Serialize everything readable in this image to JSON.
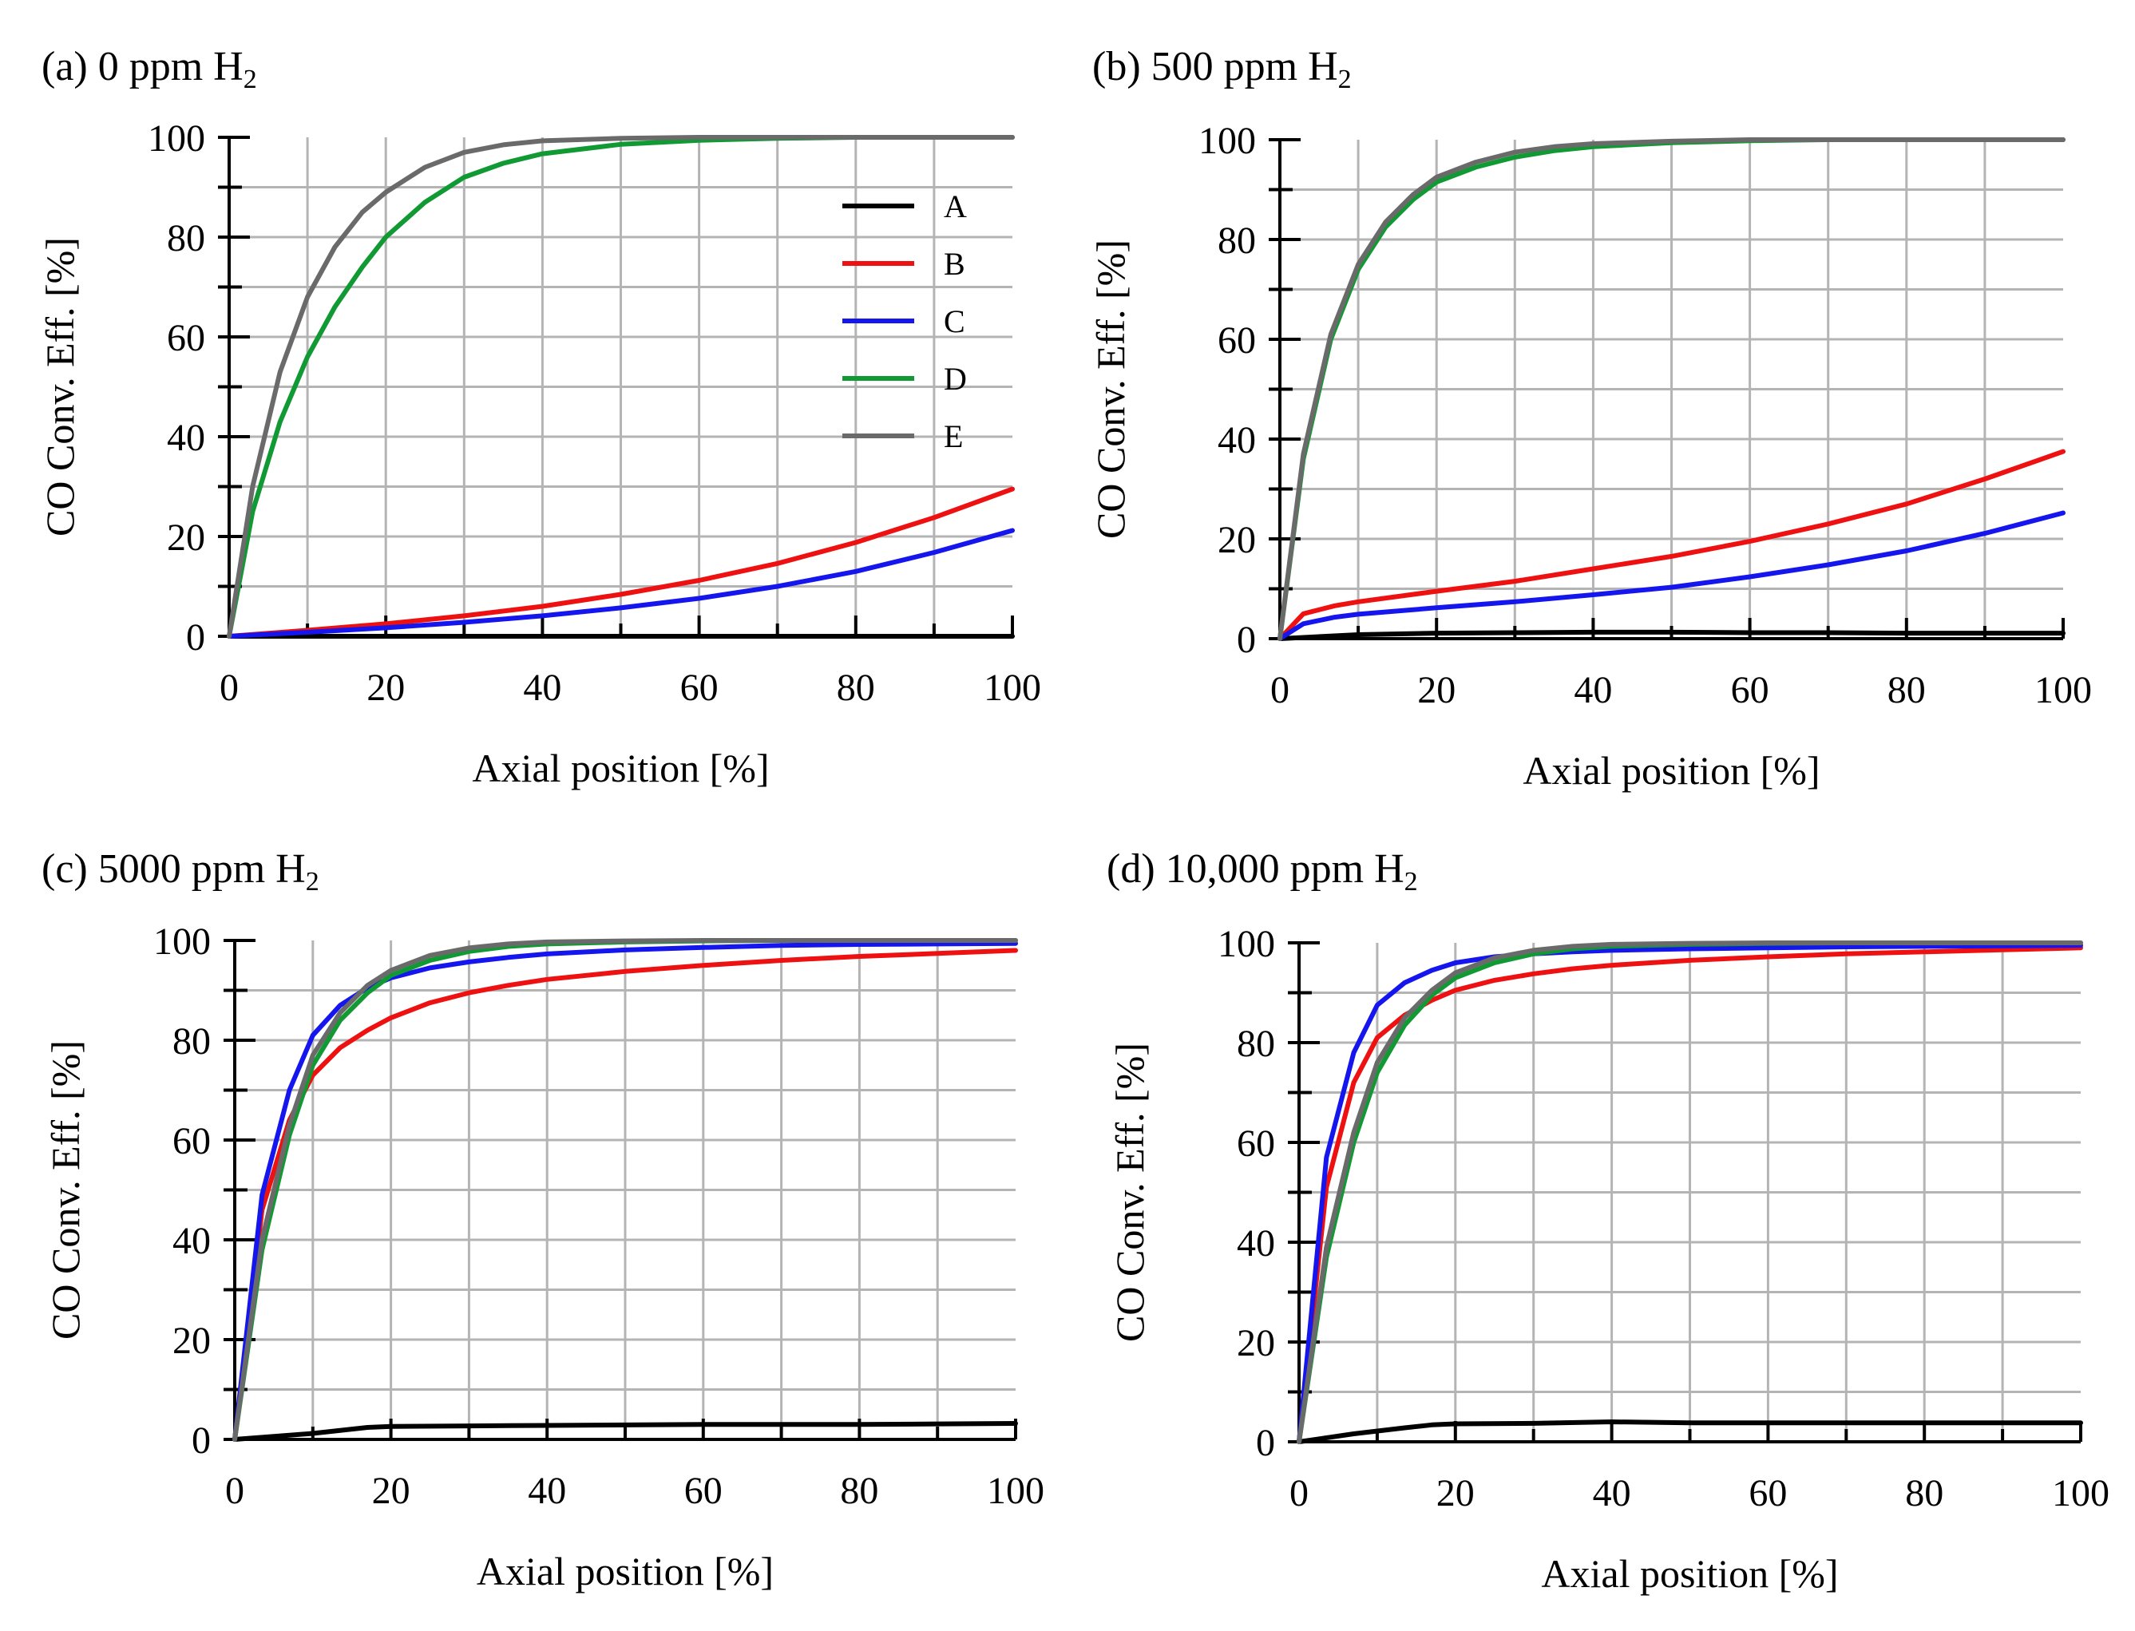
{
  "colors": {
    "A": "#000000",
    "B": "#ee1111",
    "C": "#1515ee",
    "D": "#119933",
    "E": "#6a6a6a",
    "grid": "#b4b4b4"
  },
  "chart_data": [
    {
      "type": "line",
      "title": "(a) 0 ppm H",
      "title_sub": "2",
      "xlabel": "Axial position [%]",
      "ylabel": "CO Conv. Eff.  [%]",
      "xlim": [
        0,
        100
      ],
      "ylim": [
        0,
        100
      ],
      "xticks": [
        "0",
        "20",
        "40",
        "60",
        "80",
        "100"
      ],
      "yticks": [
        "0",
        "20",
        "40",
        "60",
        "80",
        "100"
      ],
      "grid": true,
      "legend": "top-right",
      "series": [
        {
          "name": "A",
          "color": "#000000",
          "x": [
            0,
            20,
            40,
            60,
            80,
            100
          ],
          "y": [
            0,
            0,
            0,
            0,
            0,
            0
          ]
        },
        {
          "name": "B",
          "color": "#ee1111",
          "x": [
            0,
            10,
            20,
            30,
            40,
            50,
            60,
            70,
            80,
            90,
            100
          ],
          "y": [
            0,
            1.2,
            2.5,
            4.1,
            6,
            8.4,
            11.2,
            14.6,
            18.8,
            23.8,
            29.5
          ]
        },
        {
          "name": "C",
          "color": "#1515ee",
          "x": [
            0,
            10,
            20,
            30,
            40,
            50,
            60,
            70,
            80,
            90,
            100
          ],
          "y": [
            0,
            0.8,
            1.7,
            2.8,
            4.1,
            5.7,
            7.6,
            10,
            13,
            16.8,
            21.2
          ]
        },
        {
          "name": "D",
          "color": "#119933",
          "x": [
            0,
            3,
            6.5,
            10,
            13.5,
            17,
            20,
            25,
            30,
            35,
            40,
            50,
            60,
            70,
            80,
            90,
            100
          ],
          "y": [
            0,
            25,
            43,
            56,
            66,
            74,
            80,
            87,
            92,
            94.8,
            96.7,
            98.6,
            99.4,
            99.8,
            100,
            100,
            100
          ]
        },
        {
          "name": "E",
          "color": "#6a6a6a",
          "x": [
            0,
            3,
            6.5,
            10,
            13.5,
            17,
            20,
            25,
            30,
            35,
            40,
            50,
            60,
            70,
            80,
            90,
            100
          ],
          "y": [
            0,
            30,
            53,
            68,
            78,
            85,
            89,
            94,
            97,
            98.5,
            99.3,
            99.8,
            100,
            100,
            100,
            100,
            100
          ]
        }
      ]
    },
    {
      "type": "line",
      "title": "(b) 500 ppm H",
      "title_sub": "2",
      "xlabel": "Axial position [%]",
      "ylabel": "CO Conv. Eff.  [%]",
      "xlim": [
        0,
        100
      ],
      "ylim": [
        0,
        100
      ],
      "xticks": [
        "0",
        "20",
        "40",
        "60",
        "80",
        "100"
      ],
      "yticks": [
        "0",
        "20",
        "40",
        "60",
        "80",
        "100"
      ],
      "grid": true,
      "series": [
        {
          "name": "A",
          "color": "#000000",
          "x": [
            0,
            10,
            20,
            30,
            40,
            50,
            60,
            70,
            80,
            90,
            100
          ],
          "y": [
            0,
            0.8,
            1.1,
            1.2,
            1.3,
            1.3,
            1.2,
            1.2,
            1.1,
            1.1,
            1.1
          ]
        },
        {
          "name": "B",
          "color": "#ee1111",
          "x": [
            0,
            3,
            7,
            10,
            20,
            30,
            40,
            50,
            60,
            70,
            80,
            90,
            100
          ],
          "y": [
            0,
            5,
            6.6,
            7.4,
            9.5,
            11.5,
            14,
            16.5,
            19.5,
            23,
            27,
            32,
            37.5
          ]
        },
        {
          "name": "C",
          "color": "#1515ee",
          "x": [
            0,
            3,
            7,
            10,
            20,
            30,
            40,
            50,
            60,
            70,
            80,
            90,
            100
          ],
          "y": [
            0,
            3,
            4.3,
            4.9,
            6.2,
            7.4,
            8.8,
            10.3,
            12.4,
            14.8,
            17.6,
            21.1,
            25.2
          ]
        },
        {
          "name": "D",
          "color": "#119933",
          "x": [
            0,
            3,
            6.5,
            10,
            13.5,
            17,
            20,
            25,
            30,
            35,
            40,
            50,
            60,
            70,
            80,
            90,
            100
          ],
          "y": [
            0,
            36,
            60,
            74,
            82.5,
            88,
            91.5,
            94.5,
            96.5,
            97.8,
            98.6,
            99.4,
            99.8,
            100,
            100,
            100,
            100
          ]
        },
        {
          "name": "E",
          "color": "#6a6a6a",
          "x": [
            0,
            3,
            6.5,
            10,
            13.5,
            17,
            20,
            25,
            30,
            35,
            40,
            50,
            60,
            70,
            80,
            90,
            100
          ],
          "y": [
            0,
            37,
            61,
            75,
            83.5,
            89,
            92.5,
            95.5,
            97.5,
            98.6,
            99.2,
            99.7,
            100,
            100,
            100,
            100,
            100
          ]
        }
      ]
    },
    {
      "type": "line",
      "title": "(c) 5000 ppm H",
      "title_sub": "2",
      "xlabel": "Axial position [%]",
      "ylabel": "CO Conv. Eff.  [%]",
      "xlim": [
        0,
        100
      ],
      "ylim": [
        0,
        100
      ],
      "xticks": [
        "0",
        "20",
        "40",
        "60",
        "80",
        "100"
      ],
      "yticks": [
        "0",
        "20",
        "40",
        "60",
        "80",
        "100"
      ],
      "grid": true,
      "series": [
        {
          "name": "A",
          "color": "#000000",
          "x": [
            0,
            10,
            17,
            20,
            30,
            40,
            50,
            60,
            70,
            80,
            90,
            100
          ],
          "y": [
            0,
            1.2,
            2.4,
            2.6,
            2.7,
            2.8,
            2.9,
            3,
            3,
            3,
            3.1,
            3.2
          ]
        },
        {
          "name": "B",
          "color": "#ee1111",
          "x": [
            0,
            3.5,
            7,
            10,
            13.5,
            17,
            20,
            25,
            30,
            35,
            40,
            50,
            60,
            70,
            80,
            90,
            100
          ],
          "y": [
            0,
            46,
            64,
            73,
            78.5,
            82,
            84.5,
            87.5,
            89.5,
            91,
            92.2,
            93.8,
            95,
            96,
            96.8,
            97.4,
            98
          ]
        },
        {
          "name": "C",
          "color": "#1515ee",
          "x": [
            0,
            3.5,
            7,
            10,
            13.5,
            17,
            20,
            25,
            30,
            35,
            40,
            50,
            60,
            70,
            80,
            90,
            100
          ],
          "y": [
            0,
            49,
            70,
            81,
            87,
            90.5,
            92.5,
            94.5,
            95.7,
            96.6,
            97.3,
            98.1,
            98.6,
            99,
            99.2,
            99.3,
            99.4
          ]
        },
        {
          "name": "D",
          "color": "#119933",
          "x": [
            0,
            3.5,
            7,
            10,
            13.5,
            17,
            20,
            25,
            30,
            35,
            40,
            50,
            60,
            70,
            80,
            90,
            100
          ],
          "y": [
            0,
            38,
            61,
            75,
            84,
            89.5,
            93,
            96,
            97.8,
            98.8,
            99.3,
            99.7,
            99.9,
            100,
            100,
            100,
            100
          ]
        },
        {
          "name": "E",
          "color": "#6a6a6a",
          "x": [
            0,
            3.5,
            7,
            10,
            13.5,
            17,
            20,
            25,
            30,
            35,
            40,
            50,
            60,
            70,
            80,
            90,
            100
          ],
          "y": [
            0,
            40,
            63,
            77,
            85.5,
            91,
            94,
            97,
            98.5,
            99.3,
            99.7,
            99.9,
            100,
            100,
            100,
            100,
            100
          ]
        }
      ]
    },
    {
      "type": "line",
      "title": "(d) 10,000 ppm H",
      "title_sub": "2",
      "xlabel": "Axial position [%]",
      "ylabel": "CO Conv. Eff.  [%]",
      "xlim": [
        0,
        100
      ],
      "ylim": [
        0,
        100
      ],
      "xticks": [
        "0",
        "20",
        "40",
        "60",
        "80",
        "100"
      ],
      "yticks": [
        "0",
        "20",
        "40",
        "60",
        "80",
        "100"
      ],
      "grid": true,
      "series": [
        {
          "name": "A",
          "color": "#000000",
          "x": [
            0,
            7,
            13.5,
            17,
            20,
            30,
            40,
            50,
            60,
            70,
            80,
            90,
            100
          ],
          "y": [
            0,
            1.6,
            2.8,
            3.4,
            3.6,
            3.7,
            4,
            3.8,
            3.8,
            3.8,
            3.8,
            3.8,
            3.8
          ]
        },
        {
          "name": "B",
          "color": "#ee1111",
          "x": [
            0,
            3.5,
            7,
            10,
            13.5,
            17,
            20,
            25,
            30,
            35,
            40,
            50,
            60,
            70,
            80,
            90,
            100
          ],
          "y": [
            0,
            51,
            72,
            81,
            85.5,
            88.5,
            90.5,
            92.5,
            93.8,
            94.8,
            95.5,
            96.5,
            97.2,
            97.8,
            98.2,
            98.6,
            99
          ]
        },
        {
          "name": "C",
          "color": "#1515ee",
          "x": [
            0,
            3.5,
            7,
            10,
            13.5,
            17,
            20,
            25,
            30,
            35,
            40,
            50,
            60,
            70,
            80,
            90,
            100
          ],
          "y": [
            0,
            57,
            78,
            87.5,
            92,
            94.5,
            96,
            97.2,
            97.8,
            98.2,
            98.5,
            98.8,
            99,
            99.2,
            99.3,
            99.4,
            99.5
          ]
        },
        {
          "name": "D",
          "color": "#119933",
          "x": [
            0,
            3.5,
            7,
            10,
            13.5,
            17,
            20,
            25,
            30,
            35,
            40,
            50,
            60,
            70,
            80,
            90,
            100
          ],
          "y": [
            0,
            37,
            60,
            74,
            83.5,
            89.5,
            93,
            96,
            97.8,
            98.8,
            99.3,
            99.7,
            99.9,
            100,
            100,
            100,
            100
          ]
        },
        {
          "name": "E",
          "color": "#6a6a6a",
          "x": [
            0,
            3.5,
            7,
            10,
            13.5,
            17,
            20,
            25,
            30,
            35,
            40,
            50,
            60,
            70,
            80,
            90,
            100
          ],
          "y": [
            0,
            39,
            62,
            76,
            85,
            90.5,
            94,
            97,
            98.5,
            99.3,
            99.7,
            99.9,
            100,
            100,
            100,
            100,
            100
          ]
        }
      ]
    }
  ]
}
